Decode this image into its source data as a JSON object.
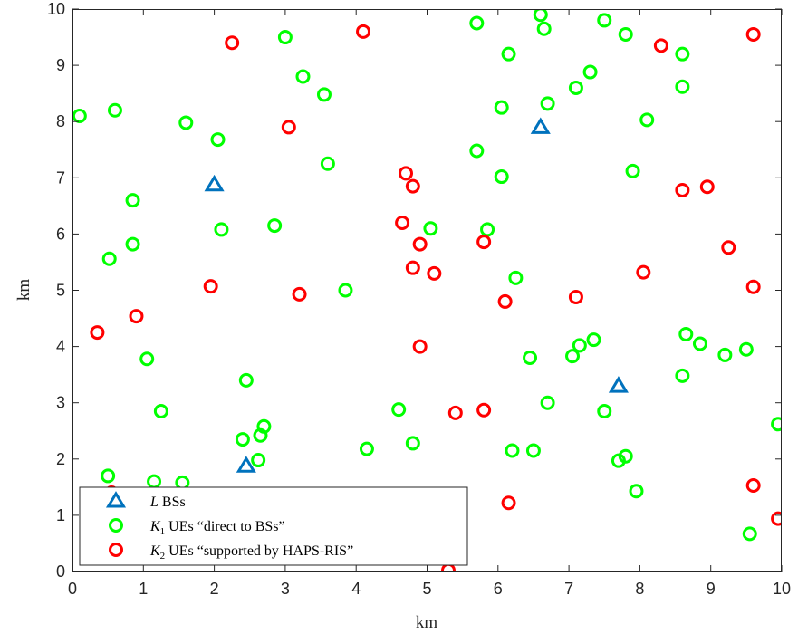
{
  "chart_data": {
    "type": "scatter",
    "xlabel": "km",
    "ylabel": "km",
    "xlim": [
      0,
      10
    ],
    "ylim": [
      0,
      10
    ],
    "x_ticks": [
      "0",
      "1",
      "2",
      "3",
      "4",
      "5",
      "6",
      "7",
      "8",
      "9",
      "10"
    ],
    "y_ticks": [
      "0",
      "1",
      "2",
      "3",
      "4",
      "5",
      "6",
      "7",
      "8",
      "9",
      "10"
    ],
    "grid": false,
    "legend_position": "bottom-left",
    "series": [
      {
        "name": "L BSs",
        "legend_symbol": "L",
        "legend_rest": " BSs",
        "marker": "triangle",
        "color": "#0072BD",
        "points": [
          [
            2.0,
            6.88
          ],
          [
            6.6,
            7.9
          ],
          [
            7.7,
            3.3
          ],
          [
            2.45,
            1.88
          ]
        ]
      },
      {
        "name": "K1 UEs “direct to BSs”",
        "legend_symbol": "K",
        "legend_sub": "1",
        "legend_rest": " UEs “direct to BSs”",
        "marker": "circle",
        "color": "#00FF00",
        "points": [
          [
            0.1,
            8.1
          ],
          [
            0.6,
            8.2
          ],
          [
            1.6,
            7.98
          ],
          [
            2.05,
            7.68
          ],
          [
            3.0,
            9.5
          ],
          [
            3.25,
            8.8
          ],
          [
            3.55,
            8.48
          ],
          [
            5.7,
            9.75
          ],
          [
            6.6,
            9.9
          ],
          [
            6.65,
            9.65
          ],
          [
            7.5,
            9.8
          ],
          [
            7.8,
            9.55
          ],
          [
            8.6,
            9.2
          ],
          [
            6.15,
            9.2
          ],
          [
            7.3,
            8.88
          ],
          [
            7.1,
            8.6
          ],
          [
            8.6,
            8.62
          ],
          [
            6.7,
            8.32
          ],
          [
            6.05,
            8.25
          ],
          [
            8.1,
            8.03
          ],
          [
            3.6,
            7.25
          ],
          [
            5.7,
            7.48
          ],
          [
            7.9,
            7.12
          ],
          [
            6.05,
            7.02
          ],
          [
            0.85,
            6.6
          ],
          [
            2.1,
            6.08
          ],
          [
            2.85,
            6.15
          ],
          [
            0.85,
            5.82
          ],
          [
            0.52,
            5.56
          ],
          [
            5.05,
            6.1
          ],
          [
            5.85,
            6.08
          ],
          [
            6.25,
            5.22
          ],
          [
            3.85,
            5.0
          ],
          [
            1.05,
            3.78
          ],
          [
            2.45,
            3.4
          ],
          [
            6.45,
            3.8
          ],
          [
            7.05,
            3.83
          ],
          [
            7.15,
            4.02
          ],
          [
            7.35,
            4.12
          ],
          [
            8.65,
            4.22
          ],
          [
            8.85,
            4.05
          ],
          [
            9.5,
            3.95
          ],
          [
            9.2,
            3.85
          ],
          [
            8.6,
            3.48
          ],
          [
            1.25,
            2.85
          ],
          [
            4.6,
            2.88
          ],
          [
            6.7,
            3.0
          ],
          [
            7.5,
            2.85
          ],
          [
            9.95,
            2.62
          ],
          [
            2.7,
            2.58
          ],
          [
            2.65,
            2.42
          ],
          [
            2.4,
            2.35
          ],
          [
            4.8,
            2.28
          ],
          [
            4.15,
            2.18
          ],
          [
            6.2,
            2.15
          ],
          [
            6.5,
            2.15
          ],
          [
            7.8,
            2.05
          ],
          [
            7.7,
            1.97
          ],
          [
            2.62,
            1.98
          ],
          [
            0.5,
            1.7
          ],
          [
            1.15,
            1.6
          ],
          [
            1.55,
            1.58
          ],
          [
            7.95,
            1.43
          ],
          [
            9.55,
            0.67
          ]
        ]
      },
      {
        "name": "K2 UEs “supported by HAPS-RIS”",
        "legend_symbol": "K",
        "legend_sub": "2",
        "legend_rest": " UEs “supported by HAPS-RIS”",
        "marker": "circle",
        "color": "#FF0000",
        "points": [
          [
            2.25,
            9.4
          ],
          [
            4.1,
            9.6
          ],
          [
            8.3,
            9.35
          ],
          [
            9.6,
            9.55
          ],
          [
            3.05,
            7.9
          ],
          [
            4.7,
            7.08
          ],
          [
            4.8,
            6.85
          ],
          [
            8.6,
            6.78
          ],
          [
            8.95,
            6.84
          ],
          [
            4.65,
            6.2
          ],
          [
            4.9,
            5.82
          ],
          [
            5.8,
            5.86
          ],
          [
            9.25,
            5.76
          ],
          [
            4.8,
            5.4
          ],
          [
            5.1,
            5.3
          ],
          [
            8.05,
            5.32
          ],
          [
            1.95,
            5.07
          ],
          [
            3.2,
            4.93
          ],
          [
            6.1,
            4.8
          ],
          [
            7.1,
            4.88
          ],
          [
            9.6,
            5.06
          ],
          [
            0.9,
            4.54
          ],
          [
            0.35,
            4.25
          ],
          [
            4.9,
            4.0
          ],
          [
            5.4,
            2.82
          ],
          [
            5.8,
            2.87
          ],
          [
            6.15,
            1.22
          ],
          [
            9.6,
            1.53
          ],
          [
            9.95,
            0.94
          ],
          [
            0.55,
            1.4
          ],
          [
            5.3,
            0.02
          ]
        ]
      }
    ]
  }
}
